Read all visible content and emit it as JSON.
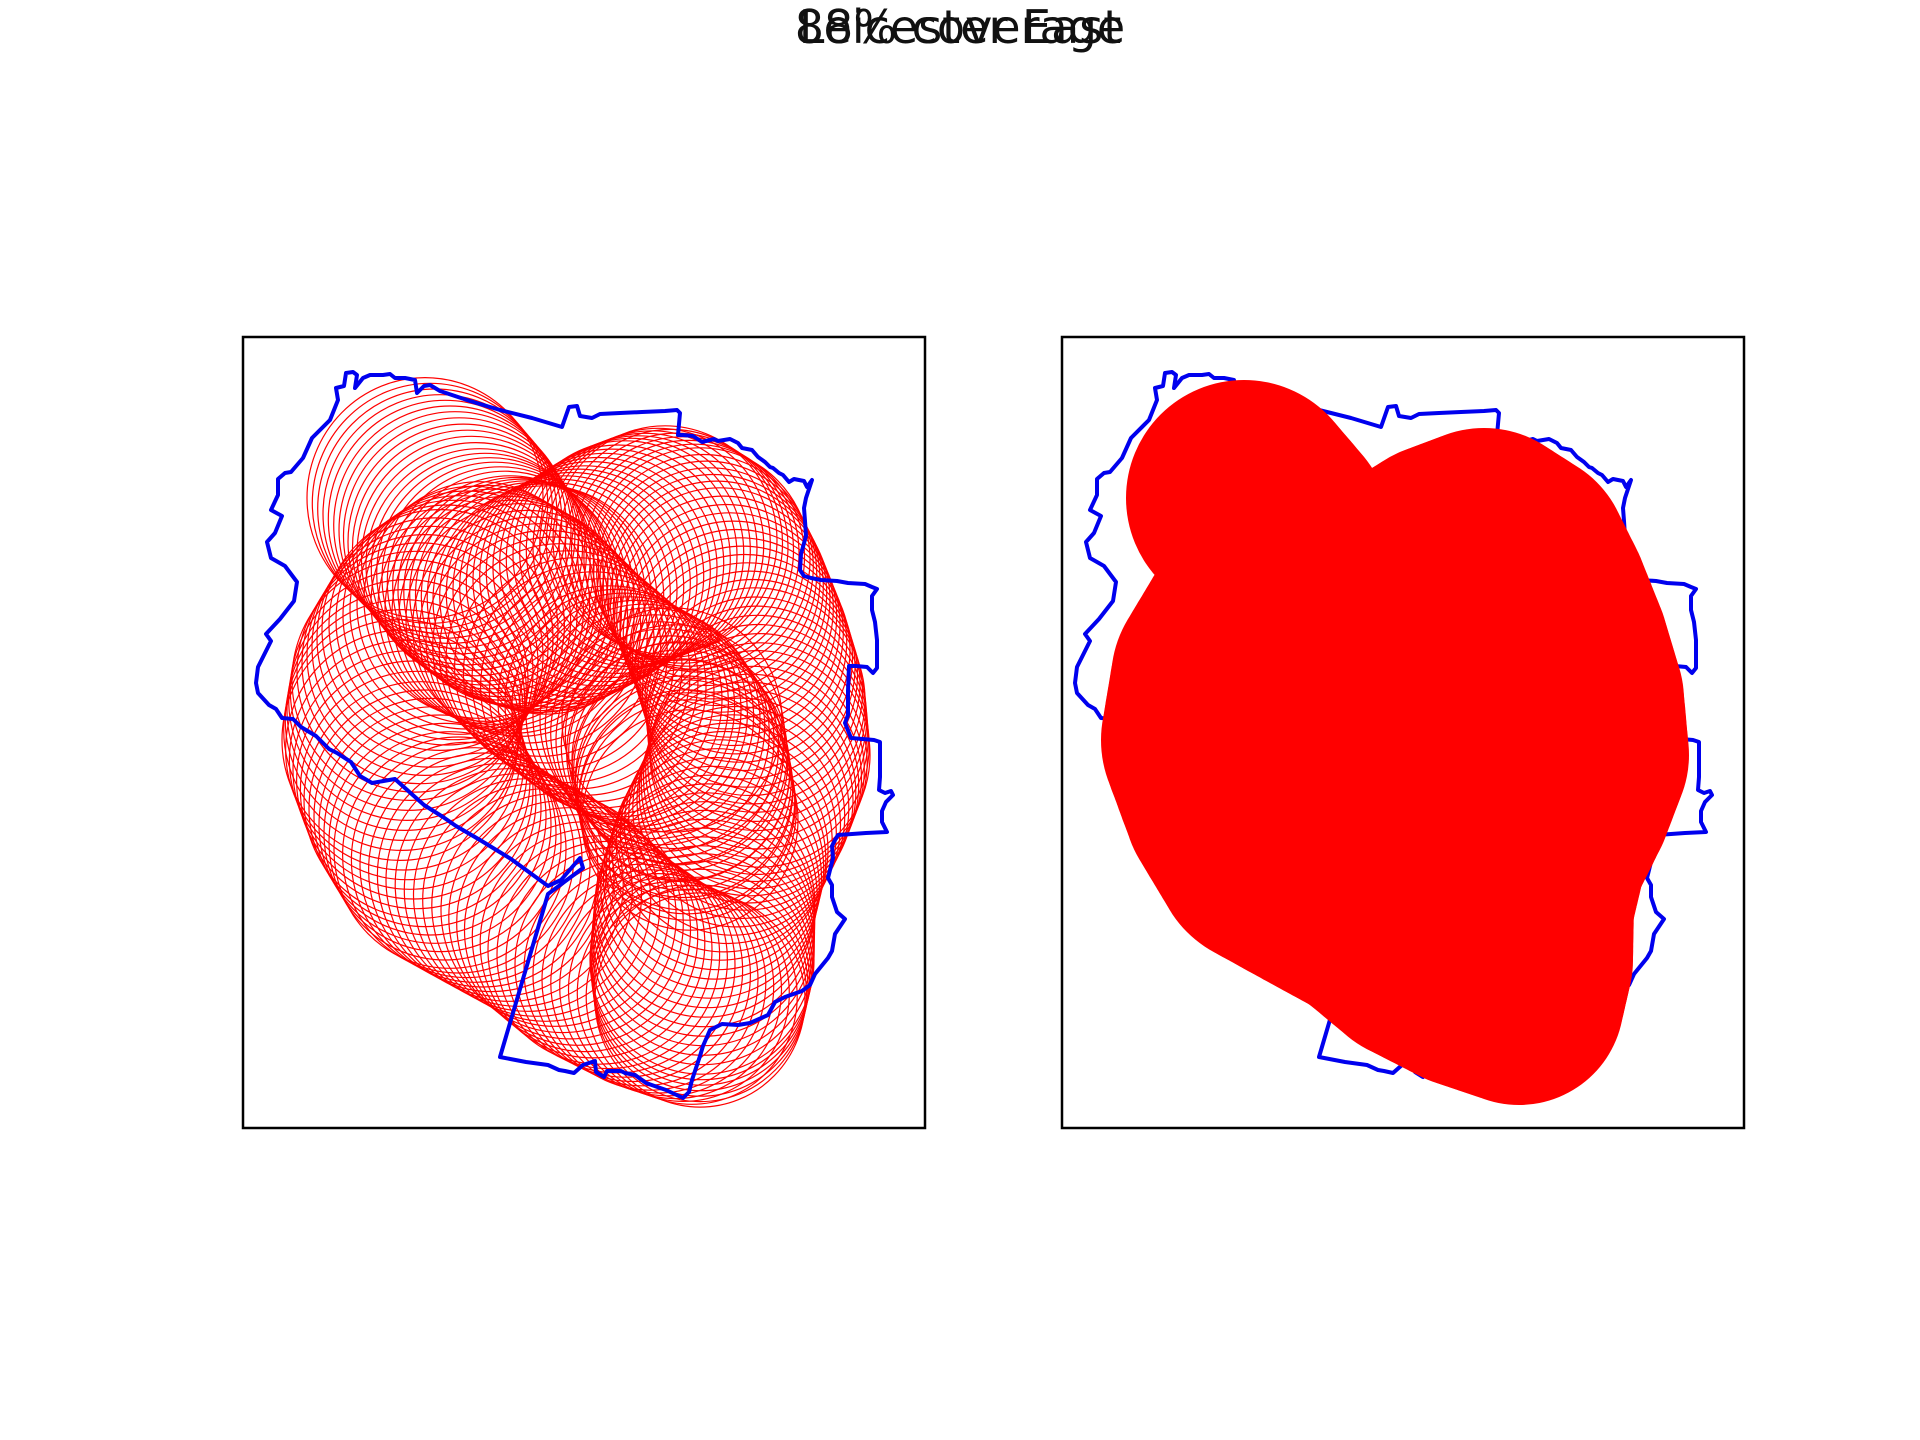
{
  "figure": {
    "title": "Leicester East",
    "subtitle": "88% coverage"
  },
  "colors": {
    "boundary": "#0000ee",
    "coverage": "#ff0000",
    "frame": "#000000",
    "background": "#ffffff"
  },
  "panels": [
    {
      "name": "circle-outlines",
      "style": "outline"
    },
    {
      "name": "coverage-filled",
      "style": "filled"
    }
  ]
}
